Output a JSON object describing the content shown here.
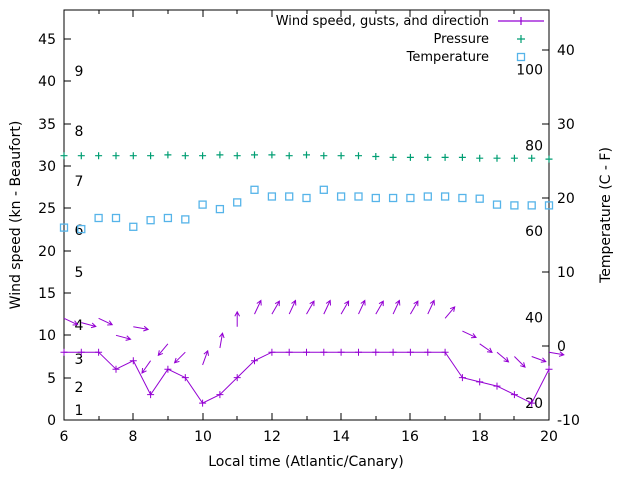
{
  "chart_data": {
    "type": "line",
    "title": "",
    "xlabel": "Local time (Atlantic/Canary)",
    "ylabel_left": "Wind speed (kn - Beaufort)",
    "ylabel_right": "Temperature (C - F)",
    "x_range": [
      6,
      20
    ],
    "x_ticks": [
      6,
      8,
      10,
      12,
      14,
      16,
      18,
      20
    ],
    "y_left_range": [
      0,
      48.4
    ],
    "y_left_ticks": [
      0,
      5,
      10,
      15,
      20,
      25,
      30,
      35,
      40,
      45
    ],
    "y_right_range": [
      -10,
      45.4
    ],
    "y_right_ticks": [
      -10,
      0,
      10,
      20,
      30,
      40
    ],
    "grid": false,
    "legend_position": "top-right-inside",
    "legend": [
      {
        "label": "Wind speed, gusts, and direction",
        "series": "wind",
        "color": "#9400d3",
        "marker": "line-plus"
      },
      {
        "label": "Pressure",
        "series": "pressure",
        "color": "#009e73",
        "marker": "plus"
      },
      {
        "label": "Temperature",
        "series": "temperature",
        "color": "#56b4e9",
        "marker": "open-square"
      }
    ],
    "beaufort_labels": [
      {
        "text": "1",
        "kn": 1.2
      },
      {
        "text": "2",
        "kn": 3.9
      },
      {
        "text": "3",
        "kn": 7.2
      },
      {
        "text": "4",
        "kn": 11.2
      },
      {
        "text": "5",
        "kn": 17.5
      },
      {
        "text": "6",
        "kn": 22.4
      },
      {
        "text": "7",
        "kn": 28.2
      },
      {
        "text": "8",
        "kn": 34.1
      },
      {
        "text": "9",
        "kn": 41.2
      }
    ],
    "right_inner_labels": [
      {
        "text": "20",
        "kn": 2.0
      },
      {
        "text": "40",
        "kn": 12.1
      },
      {
        "text": "60",
        "kn": 22.3
      },
      {
        "text": "80",
        "kn": 32.4
      },
      {
        "text": "100",
        "kn": 41.4
      }
    ],
    "x": [
      6,
      6.5,
      7,
      7.5,
      8,
      8.5,
      9,
      9.5,
      10,
      10.5,
      11,
      11.5,
      12,
      12.5,
      13,
      13.5,
      14,
      14.5,
      15,
      15.5,
      16,
      16.5,
      17,
      17.5,
      18,
      18.5,
      19,
      19.5,
      20
    ],
    "series": {
      "wind": {
        "axis": "left",
        "units": "kn",
        "color": "#9400d3",
        "values": [
          8,
          8,
          8,
          6,
          7,
          3,
          6,
          5,
          2,
          3,
          5,
          7,
          8,
          8,
          8,
          8,
          8,
          8,
          8,
          8,
          8,
          8,
          8,
          5,
          4.5,
          4,
          3,
          2,
          6
        ]
      },
      "gusts": {
        "axis": "left",
        "units": "kn",
        "color": "#9400d3",
        "values": [
          12,
          11.5,
          12,
          10,
          11,
          7,
          9,
          8,
          6.5,
          8.5,
          11,
          12.5,
          12.5,
          12.5,
          12.5,
          12.5,
          12.5,
          12.5,
          12.5,
          12.5,
          12.5,
          12.5,
          12,
          10.5,
          9,
          8,
          7.5,
          7.5,
          8
        ],
        "direction_deg": [
          115,
          105,
          115,
          105,
          100,
          215,
          220,
          225,
          20,
          10,
          0,
          25,
          30,
          25,
          30,
          25,
          30,
          25,
          30,
          25,
          30,
          25,
          40,
          115,
          125,
          130,
          135,
          110,
          100
        ]
      },
      "pressure": {
        "axis": "left",
        "units": "plot-units",
        "color": "#009e73",
        "values": [
          31.2,
          31.2,
          31.2,
          31.2,
          31.2,
          31.2,
          31.3,
          31.2,
          31.2,
          31.3,
          31.2,
          31.3,
          31.3,
          31.2,
          31.3,
          31.2,
          31.2,
          31.2,
          31.1,
          31.0,
          31.0,
          31.0,
          31.0,
          31.0,
          30.9,
          30.9,
          30.9,
          30.9,
          30.8
        ]
      },
      "temperature": {
        "axis": "right",
        "units": "C",
        "color": "#56b4e9",
        "values": [
          16,
          15.8,
          17.3,
          17.3,
          16.1,
          17,
          17.3,
          17.1,
          19.1,
          18.5,
          19.4,
          21.1,
          20.2,
          20.2,
          20,
          21.1,
          20.2,
          20.2,
          20,
          20,
          20,
          20.2,
          20.2,
          20,
          19.9,
          19.1,
          19,
          19,
          19
        ]
      }
    }
  }
}
